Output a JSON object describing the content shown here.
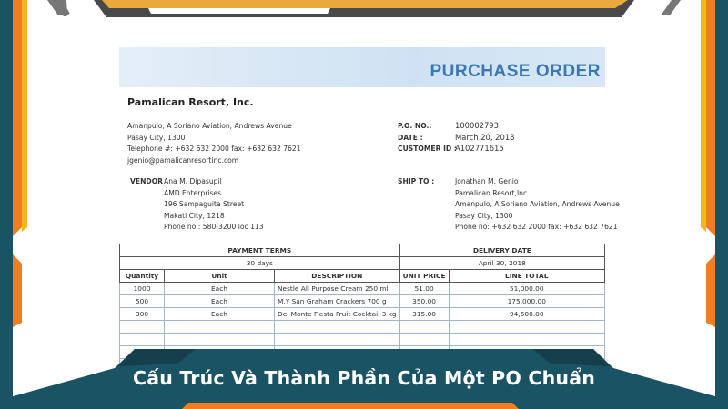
{
  "document": {
    "title": "PURCHASE ORDER",
    "company": "Pamalican Resort, Inc.",
    "company_address": [
      "Amanpulo, A Soriano Aviation, Andrews Avenue",
      "Pasay City, 1300",
      "Telephone #: +632 632 2000 fax: +632 632 7621",
      "jgenio@pamalicanresortinc.com"
    ],
    "po_info": [
      {
        "label": "P.O. NO.:",
        "value": "100002793"
      },
      {
        "label": "DATE :",
        "value": "March 20, 2018"
      },
      {
        "label": "CUSTOMER ID :",
        "value": "A102771615"
      }
    ],
    "vendor_label": "VENDOR",
    "vendor": [
      "Ana M. Dipasupil",
      "AMD Enterprises",
      "196 Sampaguita Street",
      "Makati City, 1218",
      "Phone no : 580-3200 loc 113"
    ],
    "ship_to_label": "SHIP TO :",
    "ship_to": [
      "Jonathan M. Genio",
      "Pamalican Resort,Inc.",
      "Amanpulo, A Soriano Aviation, Andrews Avenue",
      "Pasay City, 1300",
      "Phone no: +632 632 2000 fax: +632 632 7621"
    ],
    "payment_terms_label": "PAYMENT TERMS",
    "payment_terms": "30 days",
    "delivery_date_label": "DELIVERY DATE",
    "delivery_date": "April 30, 2018",
    "columns": [
      "Quantity",
      "Unit",
      "DESCRIPTION",
      "UNIT PRICE",
      "LINE TOTAL"
    ],
    "rows": [
      [
        "1000",
        "Each",
        "Nestle All Purpose Cream 250 ml",
        "51.00",
        "51,000.00"
      ],
      [
        "500",
        "Each",
        "M.Y San Graham Crackers 700 g",
        "350.00",
        "175,000.00"
      ],
      [
        "300",
        "Each",
        "Del Monte Fiesta Fruit Cocktail 3 kg",
        "315.00",
        "94,500.00"
      ]
    ]
  },
  "banner": {
    "title": "Cấu Trúc Và Thành Phần Của Một PO Chuẩn"
  },
  "colors": {
    "teal": "#1a5364",
    "orange": "#ef7d22",
    "yellow": "#f7b51c",
    "gold": "#e9a93d",
    "dark_gray": "#4a4a4a",
    "po_blue": "#3b78b3"
  }
}
